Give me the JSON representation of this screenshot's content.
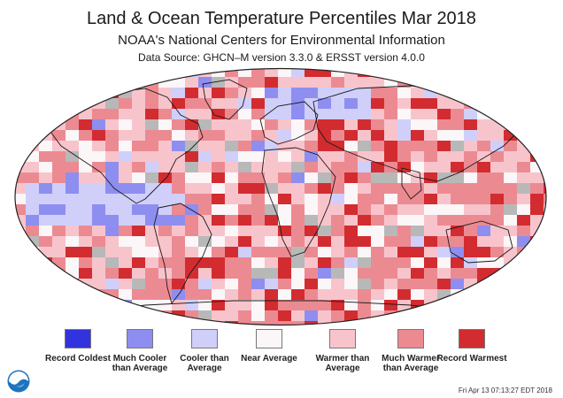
{
  "title": "Land & Ocean Temperature Percentiles Mar 2018",
  "subtitle": "NOAA's National Centers for Environmental Information",
  "source": "Data Source: GHCN–M version 3.3.0 & ERSST version 4.0.0",
  "legend": [
    {
      "label": "Record Coldest",
      "color": "#3333dd"
    },
    {
      "label": "Much Cooler than Average",
      "color": "#8e8ef0"
    },
    {
      "label": "Cooler than Average",
      "color": "#cfcffa"
    },
    {
      "label": "Near Average",
      "color": "#fbf6f8"
    },
    {
      "label": "Warmer than Average",
      "color": "#f8c4cc"
    },
    {
      "label": "Much Warmer than Average",
      "color": "#ec8a92"
    },
    {
      "label": "Record Warmest",
      "color": "#d22c30"
    }
  ],
  "no_data_color": "#b8b8b8",
  "logo": "noaa-logo",
  "timestamp": "Fri Apr 13 07:13:27 EDT 2018"
}
